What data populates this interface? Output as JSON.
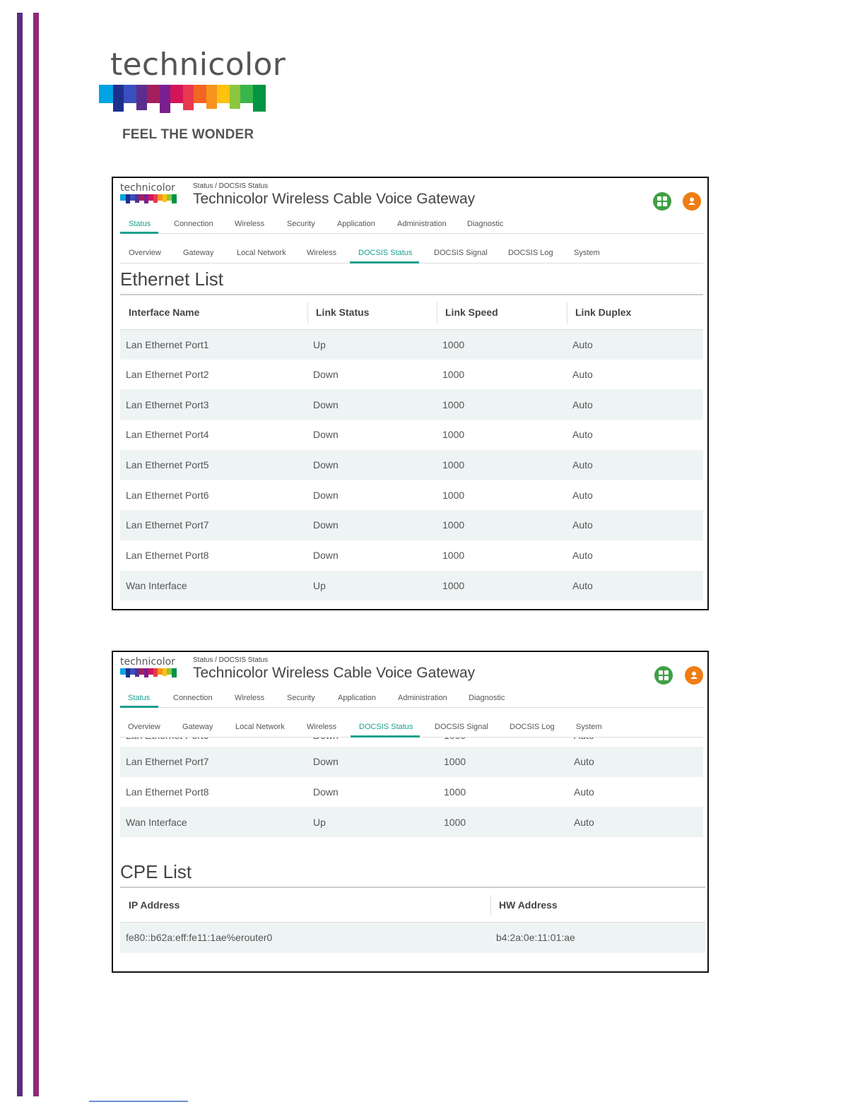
{
  "page_logo": {
    "wordmark": "technicolor",
    "tagline": "FEEL THE WONDER"
  },
  "colors": {
    "accent": "#1aa08e",
    "purple_bar": "#5b2d7e",
    "magenta_bar": "#8e2a7a",
    "grid_button": "#3fa045",
    "user_button": "#ef7d12",
    "row_stripe": "#eef3f4"
  },
  "gateway": {
    "brand": "technicolor",
    "breadcrumb": "Status / DOCSIS Status",
    "title": "Technicolor Wireless Cable Voice Gateway",
    "top_nav": [
      "Status",
      "Connection",
      "Wireless",
      "Security",
      "Application",
      "Administration",
      "Diagnostic"
    ],
    "sub_nav": [
      "Overview",
      "Gateway",
      "Local Network",
      "Wireless",
      "DOCSIS Status",
      "DOCSIS Signal",
      "DOCSIS Log",
      "System"
    ],
    "icons": {
      "apps": "grid-icon",
      "account": "user-icon"
    }
  },
  "ethernet": {
    "title": "Ethernet List",
    "headers": [
      "Interface Name",
      "Link Status",
      "Link Speed",
      "Link Duplex"
    ],
    "rows": [
      [
        "Lan Ethernet Port1",
        "Up",
        "1000",
        "Auto"
      ],
      [
        "Lan Ethernet Port2",
        "Down",
        "1000",
        "Auto"
      ],
      [
        "Lan Ethernet Port3",
        "Down",
        "1000",
        "Auto"
      ],
      [
        "Lan Ethernet Port4",
        "Down",
        "1000",
        "Auto"
      ],
      [
        "Lan Ethernet Port5",
        "Down",
        "1000",
        "Auto"
      ],
      [
        "Lan Ethernet Port6",
        "Down",
        "1000",
        "Auto"
      ],
      [
        "Lan Ethernet Port7",
        "Down",
        "1000",
        "Auto"
      ],
      [
        "Lan Ethernet Port8",
        "Down",
        "1000",
        "Auto"
      ],
      [
        "Wan Interface",
        "Up",
        "1000",
        "Auto"
      ]
    ]
  },
  "cpe": {
    "title": "CPE List",
    "headers": [
      "IP Address",
      "HW Address"
    ],
    "rows": [
      [
        "fe80::b62a:eff:fe11:1ae%erouter0",
        "b4:2a:0e:11:01:ae"
      ]
    ]
  }
}
